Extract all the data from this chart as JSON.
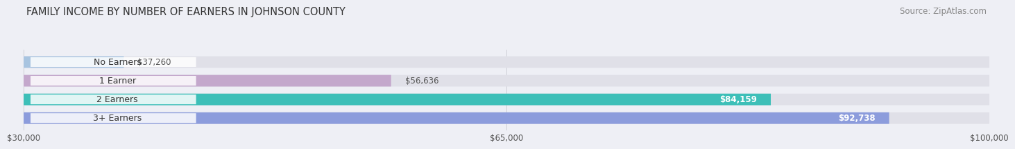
{
  "title": "FAMILY INCOME BY NUMBER OF EARNERS IN JOHNSON COUNTY",
  "source": "Source: ZipAtlas.com",
  "categories": [
    "No Earners",
    "1 Earner",
    "2 Earners",
    "3+ Earners"
  ],
  "values": [
    37260,
    56636,
    84159,
    92738
  ],
  "bar_colors": [
    "#a8c4e0",
    "#c4a8cc",
    "#3dbfb8",
    "#8c9cdc"
  ],
  "bar_bg_color": "#e0e0e8",
  "label_colors": [
    "#555555",
    "#555555",
    "#ffffff",
    "#ffffff"
  ],
  "x_min": 30000,
  "x_max": 100000,
  "x_ticks": [
    30000,
    65000,
    100000
  ],
  "x_tick_labels": [
    "$30,000",
    "$65,000",
    "$100,000"
  ],
  "title_fontsize": 10.5,
  "source_fontsize": 8.5,
  "bar_label_fontsize": 8.5,
  "category_fontsize": 9,
  "background_color": "#eeeff5"
}
